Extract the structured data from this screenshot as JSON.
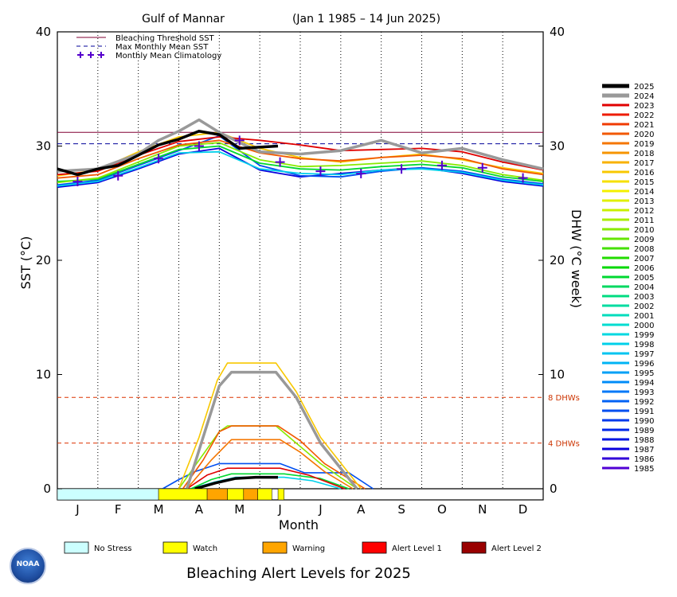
{
  "chart_data": {
    "type": "line",
    "title_location": "Gulf of Mannar",
    "title_range": "(Jan 1 1985 – 14 Jun 2025)",
    "xlabel": "Month",
    "ylabel_left": "SST (°C)",
    "ylabel_right": "DHW (°C week)",
    "ylim": [
      0,
      40
    ],
    "yticks": [
      "0",
      "10",
      "20",
      "30",
      "40"
    ],
    "months": [
      "J",
      "F",
      "M",
      "A",
      "M",
      "J",
      "J",
      "A",
      "S",
      "O",
      "N",
      "D"
    ],
    "bleaching_threshold_sst": 31.2,
    "max_monthly_mean_sst": 30.2,
    "dhw_reference_lines": [
      {
        "value": 8,
        "label": "8 DHWs"
      },
      {
        "value": 4,
        "label": "4 DHWs"
      }
    ],
    "monthly_mean_climatology": [
      26.9,
      27.4,
      28.9,
      30.0,
      30.5,
      28.6,
      27.8,
      27.6,
      28.0,
      28.3,
      28.1,
      27.2
    ],
    "legend_top": [
      {
        "label": "Bleaching Threshold SST",
        "color": "#800033"
      },
      {
        "label": "Max Monthly Mean SST",
        "color": "#000099"
      },
      {
        "label": "Monthly Mean Climatology",
        "color": "#5500cc"
      }
    ],
    "years": [
      "2025",
      "2024",
      "2023",
      "2022",
      "2021",
      "2020",
      "2019",
      "2018",
      "2017",
      "2016",
      "2015",
      "2014",
      "2013",
      "2012",
      "2011",
      "2010",
      "2009",
      "2008",
      "2007",
      "2006",
      "2005",
      "2004",
      "2003",
      "2002",
      "2001",
      "2000",
      "1999",
      "1998",
      "1997",
      "1996",
      "1995",
      "1994",
      "1993",
      "1992",
      "1991",
      "1990",
      "1989",
      "1988",
      "1987",
      "1986",
      "1985"
    ],
    "year_colors": [
      "#000000",
      "#999999",
      "#e00000",
      "#ee1c00",
      "#f03a00",
      "#f25800",
      "#f47600",
      "#f69400",
      "#f8b200",
      "#f8c800",
      "#f6e000",
      "#f4f000",
      "#e0f000",
      "#c8f000",
      "#a8ee00",
      "#88ea00",
      "#66e600",
      "#44e000",
      "#22dc00",
      "#00d800",
      "#00d830",
      "#00d860",
      "#00dc80",
      "#00dca0",
      "#00dcbc",
      "#00dcd0",
      "#00d8e0",
      "#00d0ea",
      "#00c4f0",
      "#00b4f4",
      "#00a0f6",
      "#008cf8",
      "#0078f8",
      "#0062f4",
      "#004ef0",
      "#003aec",
      "#0026e8",
      "#0014e0",
      "#0a00dc",
      "#3000d8",
      "#5000d4"
    ],
    "sst_series": [
      {
        "year": "2025",
        "months": [
          0,
          0.5,
          1,
          1.5,
          2,
          2.5,
          3,
          3.5,
          4,
          4.5,
          5.45
        ],
        "values": [
          28.0,
          27.5,
          28.0,
          28.3,
          29.2,
          30.1,
          30.6,
          31.3,
          31.0,
          29.8,
          30.0
        ]
      },
      {
        "year": "2024",
        "months": [
          0,
          1,
          2,
          2.5,
          3,
          3.5,
          4,
          4.5,
          5,
          6,
          7,
          8,
          9,
          10,
          11,
          12
        ],
        "values": [
          27.8,
          28.0,
          29.3,
          30.5,
          31.3,
          32.3,
          31.2,
          30.3,
          29.5,
          29.3,
          29.6,
          30.5,
          29.4,
          29.8,
          28.8,
          28.0
        ]
      },
      {
        "year": "2023",
        "months": [
          0,
          1,
          2,
          3,
          4,
          5,
          6,
          7,
          8,
          9,
          10,
          11,
          12
        ],
        "values": [
          27.5,
          27.8,
          29.2,
          30.4,
          30.8,
          30.5,
          30.1,
          29.6,
          29.7,
          29.8,
          29.5,
          28.6,
          27.9
        ]
      },
      {
        "year": "2020",
        "months": [
          0,
          1,
          2,
          3,
          4,
          5,
          6,
          7,
          8,
          9,
          10,
          11,
          12
        ],
        "values": [
          27.2,
          27.5,
          28.9,
          30.1,
          30.5,
          29.4,
          28.9,
          28.7,
          29.0,
          29.2,
          28.9,
          28.0,
          27.5
        ]
      },
      {
        "year": "2016",
        "months": [
          0,
          1,
          2,
          3,
          4,
          5,
          6,
          7,
          8,
          9,
          10,
          11,
          12
        ],
        "values": [
          27.4,
          27.9,
          29.5,
          30.8,
          31.2,
          29.8,
          29.0,
          28.6,
          29.0,
          29.3,
          28.8,
          28.1,
          27.6
        ]
      },
      {
        "year": "2010",
        "months": [
          0,
          1,
          2,
          3,
          4,
          5,
          6,
          7,
          8,
          9,
          10,
          11,
          12
        ],
        "values": [
          26.8,
          27.2,
          28.6,
          30.0,
          30.3,
          28.8,
          28.2,
          28.3,
          28.5,
          28.7,
          28.3,
          27.5,
          27.0
        ]
      },
      {
        "year": "2005",
        "months": [
          0,
          1,
          2,
          3,
          4,
          5,
          6,
          7,
          8,
          9,
          10,
          11,
          12
        ],
        "values": [
          26.9,
          27.1,
          28.4,
          29.7,
          30.0,
          28.5,
          28.0,
          27.9,
          28.2,
          28.4,
          28.1,
          27.3,
          26.9
        ]
      },
      {
        "year": "1998",
        "months": [
          0,
          1,
          2,
          3,
          4,
          5,
          6,
          7,
          8,
          9,
          10,
          11,
          12
        ],
        "values": [
          26.5,
          26.9,
          28.1,
          29.4,
          29.5,
          28.0,
          27.6,
          27.5,
          27.9,
          28.0,
          27.7,
          27.0,
          26.6
        ]
      },
      {
        "year": "1991",
        "months": [
          0,
          1,
          2,
          3,
          4,
          5,
          6,
          7,
          8,
          9,
          10,
          11,
          12
        ],
        "values": [
          26.6,
          27.0,
          28.3,
          29.6,
          30.9,
          28.3,
          27.4,
          27.3,
          27.8,
          28.1,
          27.8,
          27.1,
          26.7
        ]
      },
      {
        "year": "1987",
        "months": [
          0,
          1,
          2,
          3,
          4,
          5,
          6,
          7,
          8,
          9,
          10,
          11,
          12
        ],
        "values": [
          26.4,
          26.8,
          28.0,
          29.3,
          29.8,
          27.9,
          27.3,
          27.6,
          27.9,
          28.1,
          27.6,
          26.9,
          26.5
        ]
      }
    ],
    "dhw_series": [
      {
        "year": "2025",
        "months": [
          3.4,
          3.9,
          4.4,
          4.9,
          5.45
        ],
        "values": [
          0,
          0.5,
          0.9,
          1.0,
          1.0
        ]
      },
      {
        "year": "2024",
        "months": [
          3.2,
          3.6,
          4.0,
          4.3,
          5.4,
          5.9,
          6.5,
          7.4
        ],
        "values": [
          0,
          4.5,
          9.0,
          10.2,
          10.2,
          8.0,
          4.0,
          0
        ]
      },
      {
        "year": "2016",
        "months": [
          3.0,
          3.5,
          3.95,
          4.2,
          5.4,
          5.9,
          6.5,
          7.5
        ],
        "values": [
          0,
          4.5,
          9.5,
          11.0,
          11.0,
          8.5,
          4.5,
          0
        ]
      },
      {
        "year": "2020",
        "months": [
          3.1,
          3.6,
          4.0,
          4.3,
          5.45,
          6.0,
          6.6,
          7.6
        ],
        "values": [
          0,
          2.5,
          5.0,
          5.5,
          5.5,
          4.2,
          2.2,
          0
        ]
      },
      {
        "year": "2010",
        "months": [
          3.0,
          3.5,
          4.0,
          4.2,
          5.4,
          5.9,
          6.5,
          7.4
        ],
        "values": [
          0,
          2.5,
          5.0,
          5.5,
          5.5,
          4.0,
          2.2,
          0
        ]
      },
      {
        "year": "2019",
        "months": [
          3.2,
          3.8,
          4.3,
          5.5,
          6.0,
          6.6,
          7.3
        ],
        "values": [
          0,
          2.5,
          4.3,
          4.3,
          3.2,
          1.5,
          0
        ]
      },
      {
        "year": "1991",
        "months": [
          2.6,
          3.0,
          3.4,
          4.0,
          5.5,
          6.1,
          7.2,
          7.8
        ],
        "values": [
          0,
          0.8,
          1.5,
          2.2,
          2.2,
          1.4,
          1.4,
          0
        ]
      },
      {
        "year": "2023",
        "months": [
          3.2,
          3.7,
          4.2,
          5.5,
          6.2,
          7.1
        ],
        "values": [
          0,
          1.2,
          1.8,
          1.8,
          1.2,
          0
        ]
      },
      {
        "year": "2005",
        "months": [
          3.3,
          3.8,
          4.3,
          5.6,
          6.5,
          7.2
        ],
        "values": [
          0,
          0.8,
          1.3,
          1.3,
          0.9,
          0
        ]
      },
      {
        "year": "1998",
        "months": [
          3.3,
          3.9,
          4.4,
          5.6,
          6.3,
          7.0
        ],
        "values": [
          0,
          0.6,
          1.0,
          1.0,
          0.7,
          0
        ]
      }
    ],
    "alert_bar": [
      {
        "start": 0.0,
        "end": 2.5,
        "level": "No Stress"
      },
      {
        "start": 2.5,
        "end": 3.7,
        "level": "Watch"
      },
      {
        "start": 3.7,
        "end": 4.2,
        "level": "Warning"
      },
      {
        "start": 4.2,
        "end": 4.6,
        "level": "Watch"
      },
      {
        "start": 4.6,
        "end": 4.95,
        "level": "Warning"
      },
      {
        "start": 4.95,
        "end": 5.3,
        "level": "Watch"
      },
      {
        "start": 5.45,
        "end": 5.6,
        "level": "Watch"
      }
    ]
  },
  "footer": {
    "legend": [
      {
        "label": "No Stress",
        "color": "#ccffff"
      },
      {
        "label": "Watch",
        "color": "#ffff00"
      },
      {
        "label": "Warning",
        "color": "#ffa500"
      },
      {
        "label": "Alert Level 1",
        "color": "#ff0000"
      },
      {
        "label": "Alert Level 2",
        "color": "#990000"
      }
    ],
    "title": "Bleaching Alert Levels for 2025",
    "logo_text": "NOAA"
  }
}
